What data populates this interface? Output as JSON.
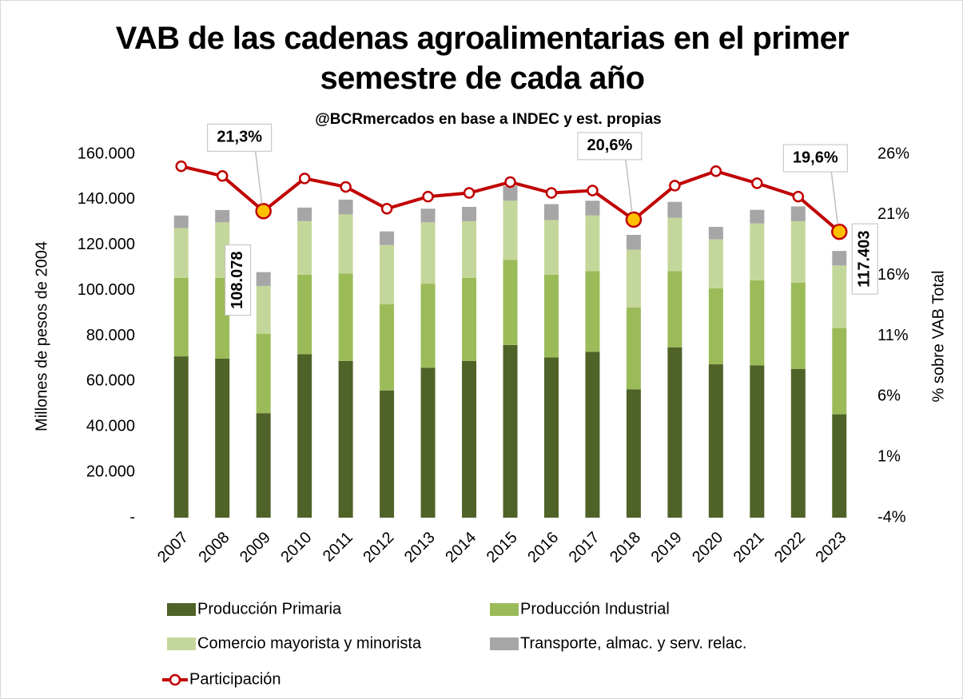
{
  "chart_data": {
    "type": "bar",
    "stacked": true,
    "title": "VAB de las cadenas agroalimentarias en el primer semestre de cada año",
    "subtitle": "@BCRmercados en base a INDEC y est. propias",
    "y_label": "Millones de pesos de 2004",
    "y2_label": "% sobre VAB Total",
    "categories": [
      "2007",
      "2008",
      "2009",
      "2010",
      "2011",
      "2012",
      "2013",
      "2014",
      "2015",
      "2016",
      "2017",
      "2018",
      "2019",
      "2020",
      "2021",
      "2022",
      "2023"
    ],
    "series": [
      {
        "name": "Producción Primaria",
        "color": "#4f6228",
        "values": [
          71000,
          70000,
          46000,
          72000,
          69000,
          56000,
          66000,
          69000,
          76000,
          70500,
          73000,
          56500,
          75000,
          67500,
          67000,
          65500,
          45500
        ]
      },
      {
        "name": "Producción Industrial",
        "color": "#9bbb59",
        "values": [
          34500,
          35500,
          35000,
          35000,
          38500,
          38000,
          37000,
          36500,
          37500,
          36500,
          35500,
          36000,
          33500,
          33500,
          37500,
          38000,
          38000
        ]
      },
      {
        "name": "Comercio mayorista y minorista",
        "color": "#c4d79b",
        "values": [
          22000,
          24500,
          21000,
          23500,
          26000,
          26000,
          27000,
          25000,
          26000,
          24000,
          24500,
          25500,
          23500,
          21500,
          25000,
          27000,
          27500
        ]
      },
      {
        "name": "Transporte, almac. y serv. relac.",
        "color": "#a6a6a6",
        "values": [
          5500,
          5400,
          6078,
          6000,
          6500,
          6000,
          6000,
          6300,
          6500,
          7000,
          6500,
          6500,
          7000,
          5500,
          6000,
          6500,
          6403
        ]
      },
      {
        "name": "Participación",
        "type": "line",
        "axis": "y2",
        "color": "#c00000",
        "highlight_color": "#ffc000",
        "values": [
          25.0,
          24.2,
          21.3,
          24.0,
          23.3,
          21.5,
          22.5,
          22.8,
          23.7,
          22.8,
          23.0,
          20.6,
          23.4,
          24.6,
          23.6,
          22.5,
          19.6
        ],
        "value_labels": [
          null,
          null,
          "21,3%",
          null,
          null,
          null,
          null,
          null,
          null,
          null,
          null,
          "20,6%",
          null,
          null,
          null,
          null,
          "19,6%"
        ]
      }
    ],
    "annotations": [
      {
        "x": "2009",
        "text": "108.078",
        "value": 108078
      },
      {
        "x": "2023",
        "text": "117.403",
        "value": 117403
      }
    ],
    "ylim": [
      0,
      160000
    ],
    "yticks": [
      {
        "value": 0,
        "label": "-"
      },
      {
        "value": 20000,
        "label": "20.000"
      },
      {
        "value": 40000,
        "label": "40.000"
      },
      {
        "value": 60000,
        "label": "60.000"
      },
      {
        "value": 80000,
        "label": "80.000"
      },
      {
        "value": 100000,
        "label": "100.000"
      },
      {
        "value": 120000,
        "label": "120.000"
      },
      {
        "value": 140000,
        "label": "140.000"
      },
      {
        "value": 160000,
        "label": "160.000"
      }
    ],
    "y2lim": [
      -4,
      26
    ],
    "y2ticks": [
      {
        "value": -4,
        "label": "-4%"
      },
      {
        "value": 1,
        "label": "1%"
      },
      {
        "value": 6,
        "label": "6%"
      },
      {
        "value": 11,
        "label": "11%"
      },
      {
        "value": 16,
        "label": "16%"
      },
      {
        "value": 21,
        "label": "21%"
      },
      {
        "value": 26,
        "label": "26%"
      }
    ],
    "grid": false,
    "legend": "bottom"
  }
}
